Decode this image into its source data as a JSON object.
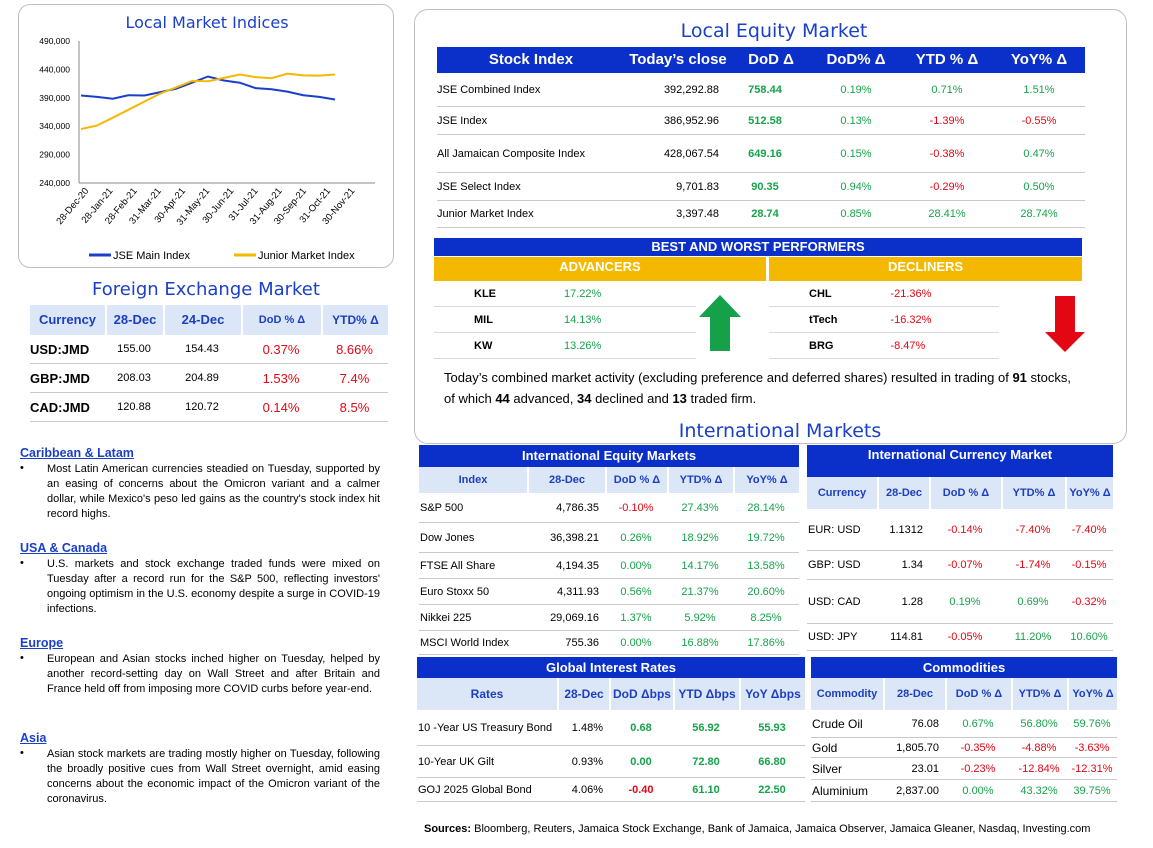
{
  "chart": {
    "title": "Local Market Indices",
    "legend": [
      {
        "name": "JSE Main Index",
        "color": "#1a3fc8"
      },
      {
        "name": "Junior Market Index",
        "color": "#f5b800"
      }
    ]
  },
  "chart_data": {
    "type": "line",
    "title": "Local Market Indices",
    "xlabel": "",
    "ylabel": "",
    "ylim": [
      240000,
      490000
    ],
    "y_ticks": [
      "490,000",
      "440,000",
      "390,000",
      "340,000",
      "290,000",
      "240,000"
    ],
    "x_ticks": [
      "28-Dec-20",
      "28-Jan-21",
      "28-Feb-21",
      "31-Mar-21",
      "30-Apr-21",
      "31-May-21",
      "30-Jun-21",
      "31-Jul-21",
      "31-Aug-21",
      "30-Sep-21",
      "31-Oct-21",
      "30-Nov-21"
    ],
    "legend": "bottom",
    "series": [
      {
        "name": "JSE Main Index",
        "color": "#1a3fc8",
        "values": [
          394000,
          392000,
          388000,
          393000,
          395000,
          400000,
          405000,
          418000,
          428000,
          420000,
          415000,
          408000,
          405000,
          400000,
          396000,
          392000,
          387000
        ]
      },
      {
        "name": "Junior Market Index",
        "color": "#f5b800",
        "values": [
          335000,
          342000,
          355000,
          368000,
          385000,
          398000,
          408000,
          418000,
          420000,
          425000,
          430000,
          428000,
          425000,
          432000,
          428000,
          430000,
          431000
        ]
      }
    ]
  },
  "fx": {
    "title": "Foreign Exchange Market",
    "headers": [
      "Currency",
      "28-Dec",
      "24-Dec",
      "DoD % Δ",
      "YTD% Δ"
    ],
    "rows": [
      {
        "cur": "USD:JMD",
        "a": "155.00",
        "b": "154.43",
        "dod": "0.37%",
        "ytd": "8.66%"
      },
      {
        "cur": "GBP:JMD",
        "a": "208.03",
        "b": "204.89",
        "dod": "1.53%",
        "ytd": "7.4%"
      },
      {
        "cur": "CAD:JMD",
        "a": "120.88",
        "b": "120.72",
        "dod": "0.14%",
        "ytd": "8.5%"
      }
    ]
  },
  "news": [
    {
      "h": "Caribbean & Latam",
      "t": "Most Latin American currencies steadied on Tuesday, supported by an easing of concerns about the Omicron variant and a calmer dollar, while Mexico's peso led gains as the country's stock index hit record highs."
    },
    {
      "h": "USA & Canada",
      "t": "U.S. markets and stock exchange traded funds were mixed on Tuesday after a record run for the S&P 500, reflecting investors' ongoing optimism in the U.S. economy despite a surge in COVID-19 infections."
    },
    {
      "h": "Europe",
      "t": "European and Asian stocks inched higher on Tuesday, helped by another record-setting day on Wall Street and after Britain and France held off from imposing more COVID curbs before year-end."
    },
    {
      "h": "Asia",
      "t": "Asian stock markets are trading mostly higher on Tuesday, following the broadly positive cues from Wall Street overnight, amid easing concerns about the economic impact of the Omicron variant of the coronavirus."
    }
  ],
  "equity": {
    "title": "Local Equity Market",
    "headers": [
      "Stock Index",
      "Today’s close",
      "DoD  Δ",
      "DoD% Δ",
      "YTD % Δ",
      "YoY% Δ"
    ],
    "rows": [
      {
        "n": "JSE Combined Index",
        "c": "392,292.88",
        "d": "758.44",
        "dp": "0.19%",
        "y": "0.71%",
        "yy": "1.51%"
      },
      {
        "n": "JSE Index",
        "c": "386,952.96",
        "d": "512.58",
        "dp": "0.13%",
        "y": "-1.39%",
        "yy": "-0.55%"
      },
      {
        "n": "All Jamaican Composite Index",
        "c": "428,067.54",
        "d": "649.16",
        "dp": "0.15%",
        "y": "-0.38%",
        "yy": "0.47%"
      },
      {
        "n": "JSE Select Index",
        "c": "9,701.83",
        "d": "90.35",
        "dp": "0.94%",
        "y": "-0.29%",
        "yy": "0.50%"
      },
      {
        "n": "Junior Market Index",
        "c": "3,397.48",
        "d": "28.74",
        "dp": "0.85%",
        "y": "28.41%",
        "yy": "28.74%"
      }
    ]
  },
  "performers": {
    "title": "BEST AND WORST PERFORMERS",
    "adv_label": "ADVANCERS",
    "dec_label": "DECLINERS",
    "adv": [
      {
        "s": "KLE",
        "v": "17.22%"
      },
      {
        "s": "MIL",
        "v": "14.13%"
      },
      {
        "s": "KW",
        "v": "13.26%"
      }
    ],
    "dec": [
      {
        "s": "CHL",
        "v": "-21.36%"
      },
      {
        "s": "tTech",
        "v": "-16.32%"
      },
      {
        "s": "BRG",
        "v": "-8.47%"
      }
    ]
  },
  "activity": {
    "p1": "Today’s combined market activity (excluding preference and deferred shares) resulted in trading of ",
    "n1": "91",
    "p2": " stocks, of which ",
    "n2": "44",
    "p3": " advanced, ",
    "n3": "34",
    "p4": " declined and ",
    "n4": "13",
    "p5": " traded firm."
  },
  "intl": {
    "title": "International Markets",
    "eq": {
      "title": "International Equity Markets",
      "headers": [
        "Index",
        "28-Dec",
        "DoD % Δ",
        "YTD% Δ",
        "YoY% Δ"
      ],
      "rows": [
        {
          "n": "S&P 500",
          "v": "4,786.35",
          "d": "-0.10%",
          "y": "27.43%",
          "yy": "28.14%"
        },
        {
          "n": "Dow Jones",
          "v": "36,398.21",
          "d": "0.26%",
          "y": "18.92%",
          "yy": "19.72%"
        },
        {
          "n": "FTSE All Share",
          "v": "4,194.35",
          "d": "0.00%",
          "y": "14.17%",
          "yy": "13.58%"
        },
        {
          "n": "Euro Stoxx 50",
          "v": "4,311.93",
          "d": "0.56%",
          "y": "21.37%",
          "yy": "20.60%"
        },
        {
          "n": "Nikkei 225",
          "v": "29,069.16",
          "d": "1.37%",
          "y": "5.92%",
          "yy": "8.25%"
        },
        {
          "n": "MSCI World Index",
          "v": "755.36",
          "d": "0.00%",
          "y": "16.88%",
          "yy": "17.86%"
        }
      ]
    },
    "cur": {
      "title": "International Currency Market",
      "headers": [
        "Currency",
        "28-Dec",
        "DoD % Δ",
        "YTD% Δ",
        "YoY% Δ"
      ],
      "rows": [
        {
          "n": "EUR: USD",
          "v": "1.1312",
          "d": "-0.14%",
          "y": "-7.40%",
          "yy": "-7.40%"
        },
        {
          "n": "GBP: USD",
          "v": "1.34",
          "d": "-0.07%",
          "y": "-1.74%",
          "yy": "-0.15%"
        },
        {
          "n": "USD: CAD",
          "v": "1.28",
          "d": "0.19%",
          "y": "0.69%",
          "yy": "-0.32%"
        },
        {
          "n": "USD: JPY",
          "v": "114.81",
          "d": "-0.05%",
          "y": "11.20%",
          "yy": "10.60%"
        }
      ]
    },
    "rates": {
      "title": "Global Interest Rates",
      "headers": [
        "Rates",
        "28-Dec",
        "DoD Δbps",
        "YTD Δbps",
        "YoY Δbps"
      ],
      "rows": [
        {
          "n": "10 -Year US Treasury Bond",
          "v": "1.48%",
          "d": "0.68",
          "y": "56.92",
          "yy": "55.93"
        },
        {
          "n": "10-Year UK Gilt",
          "v": "0.93%",
          "d": "0.00",
          "y": "72.80",
          "yy": "66.80"
        },
        {
          "n": "GOJ 2025 Global Bond",
          "v": "4.06%",
          "d": "-0.40",
          "y": "61.10",
          "yy": "22.50"
        }
      ]
    },
    "comm": {
      "title": "Commodities",
      "headers": [
        "Commodity",
        "28-Dec",
        "DoD % Δ",
        "YTD% Δ",
        "YoY% Δ"
      ],
      "rows": [
        {
          "n": "Crude Oil",
          "v": "76.08",
          "d": "0.67%",
          "y": "56.80%",
          "yy": "59.76%"
        },
        {
          "n": "Gold",
          "v": "1,805.70",
          "d": "-0.35%",
          "y": "-4.88%",
          "yy": "-3.63%"
        },
        {
          "n": "Silver",
          "v": "23.01",
          "d": "-0.23%",
          "y": "-12.84%",
          "yy": "-12.31%"
        },
        {
          "n": "Aluminium",
          "v": "2,837.00",
          "d": "0.00%",
          "y": "43.32%",
          "yy": "39.75%"
        }
      ]
    }
  },
  "sources": {
    "label": "Sources:",
    "text": " Bloomberg, Reuters, Jamaica Stock Exchange, Bank of Jamaica, Jamaica Observer, Jamaica Gleaner, Nasdaq, Investing.com"
  }
}
